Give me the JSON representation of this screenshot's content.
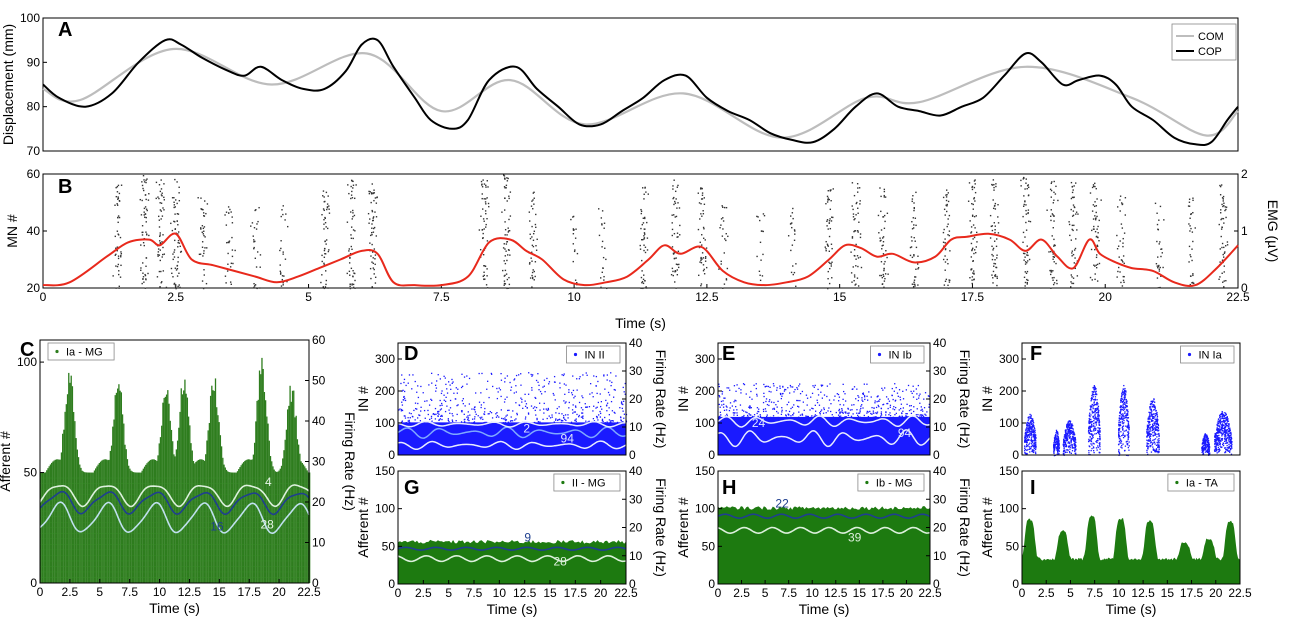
{
  "figure": {
    "time_label": "Time (s)"
  },
  "chart_data": [
    {
      "panel": "A",
      "type": "line",
      "xlabel": "",
      "ylabel": "Displacement (mm)",
      "xlim": [
        0,
        22.5
      ],
      "ylim": [
        70,
        100
      ],
      "yticks": [
        "70",
        "80",
        "90",
        "100"
      ],
      "series": [
        {
          "name": "COM",
          "color": "#bdbdbd",
          "x": [
            0,
            0.7,
            2.45,
            4.3,
            6.1,
            7.5,
            8.8,
            10.2,
            12.05,
            13.9,
            15.5,
            16.5,
            18.5,
            20.5,
            21.9,
            22.5
          ],
          "y": [
            84,
            81.5,
            93,
            85,
            92,
            79,
            86,
            76,
            83,
            73,
            82,
            81,
            89,
            82,
            73.5,
            79
          ]
        },
        {
          "name": "COP",
          "color": "#000000",
          "x": [
            0,
            0.3,
            0.8,
            1.3,
            1.8,
            2.3,
            2.6,
            3.0,
            3.5,
            3.8,
            4.1,
            4.5,
            4.9,
            5.3,
            5.7,
            6.0,
            6.3,
            6.6,
            7.0,
            7.3,
            7.7,
            8.0,
            8.4,
            8.9,
            9.3,
            9.7,
            10.1,
            10.5,
            10.9,
            11.3,
            11.7,
            12.1,
            12.5,
            12.9,
            13.3,
            13.7,
            14.1,
            14.5,
            14.9,
            15.3,
            15.7,
            16.1,
            16.5,
            16.9,
            17.3,
            17.7,
            18.1,
            18.5,
            18.8,
            19.2,
            19.5,
            19.9,
            20.2,
            20.5,
            20.9,
            21.3,
            21.7,
            22.0,
            22.3,
            22.5
          ],
          "y": [
            85,
            82,
            80,
            83,
            90,
            95,
            94,
            91,
            88,
            87,
            89,
            86,
            84,
            84,
            88,
            94,
            95,
            89,
            82,
            77,
            75,
            77,
            86,
            89,
            84,
            80,
            76,
            76,
            79,
            82,
            86,
            87,
            82,
            79,
            77,
            74,
            72.5,
            72,
            75,
            80,
            83,
            80,
            79,
            78,
            80,
            82,
            87,
            92,
            90,
            85,
            86,
            87,
            85,
            80,
            77,
            73,
            71.5,
            72,
            77,
            80
          ]
        }
      ],
      "legend": {
        "position": "top-right",
        "entries": [
          "COM",
          "COP"
        ]
      }
    },
    {
      "panel": "B",
      "type": "scatter",
      "xlabel": "Time (s)",
      "ylabel": "MN #",
      "y2label": "EMG (µV)",
      "xlim": [
        0,
        22.5
      ],
      "ylim": [
        20,
        60
      ],
      "y2lim": [
        0,
        2
      ],
      "xticks": [
        "0",
        "2.5",
        "5",
        "7.5",
        "10",
        "12.5",
        "15",
        "17.5",
        "20",
        "22.5"
      ],
      "yticks": [
        "20",
        "40",
        "60"
      ],
      "y2ticks": [
        "0",
        "1",
        "2"
      ],
      "raster": {
        "name": "MN spikes",
        "color": "#333333",
        "burst_centers": [
          1.4,
          1.9,
          2.2,
          2.5,
          3.0,
          3.5,
          4.0,
          4.5,
          5.3,
          5.8,
          6.2,
          8.3,
          8.7,
          9.2,
          10.0,
          10.5,
          11.3,
          11.9,
          12.4,
          12.8,
          13.5,
          14.1,
          14.8,
          15.3,
          15.8,
          16.4,
          17.0,
          17.5,
          17.9,
          18.5,
          19.0,
          19.4,
          19.8,
          20.3,
          21.0,
          21.6,
          22.2
        ],
        "burst_strength": [
          0.8,
          1.0,
          0.9,
          1.0,
          0.6,
          0.5,
          0.45,
          0.4,
          0.85,
          0.9,
          0.95,
          0.9,
          1.0,
          0.7,
          0.3,
          0.35,
          0.8,
          0.9,
          0.8,
          0.4,
          0.3,
          0.35,
          0.8,
          0.85,
          0.8,
          0.7,
          0.75,
          0.9,
          0.9,
          0.95,
          0.9,
          0.85,
          0.9,
          0.6,
          0.5,
          0.55,
          0.9
        ]
      },
      "series": [
        {
          "name": "EMG",
          "color": "#e8291c",
          "axis": "right",
          "x": [
            0,
            0.5,
            1.2,
            1.6,
            2.0,
            2.2,
            2.5,
            2.8,
            3.2,
            3.6,
            4.0,
            4.4,
            4.8,
            5.2,
            5.6,
            6.0,
            6.3,
            6.6,
            7.0,
            7.5,
            8.0,
            8.4,
            8.8,
            9.1,
            9.4,
            9.8,
            10.2,
            10.6,
            11.0,
            11.4,
            11.7,
            12.0,
            12.4,
            12.8,
            13.2,
            13.6,
            14.0,
            14.4,
            14.8,
            15.1,
            15.4,
            15.7,
            16.0,
            16.4,
            16.8,
            17.1,
            17.4,
            17.8,
            18.2,
            18.5,
            18.8,
            19.1,
            19.4,
            19.7,
            19.9,
            20.2,
            20.5,
            20.9,
            21.3,
            21.7,
            22.1,
            22.5
          ],
          "y": [
            0.05,
            0.1,
            0.55,
            0.8,
            0.85,
            0.75,
            0.95,
            0.5,
            0.4,
            0.3,
            0.2,
            0.1,
            0.2,
            0.35,
            0.5,
            0.65,
            0.6,
            0.1,
            0.05,
            0.05,
            0.2,
            0.8,
            0.85,
            0.65,
            0.5,
            0.15,
            0.05,
            0.1,
            0.2,
            0.5,
            0.75,
            0.6,
            0.72,
            0.3,
            0.1,
            0.05,
            0.1,
            0.2,
            0.5,
            0.75,
            0.7,
            0.55,
            0.6,
            0.45,
            0.55,
            0.85,
            0.9,
            0.95,
            0.85,
            0.65,
            0.85,
            0.55,
            0.35,
            0.85,
            0.6,
            0.45,
            0.35,
            0.3,
            0.1,
            0.05,
            0.35,
            0.75
          ]
        }
      ]
    },
    {
      "panel": "C",
      "type": "scatter",
      "xlabel": "Time (s)",
      "ylabel": "Afferent #",
      "y2label": "Firing Rate (Hz)",
      "xlim": [
        0,
        22.5
      ],
      "ylim": [
        0,
        110
      ],
      "y2lim": [
        0,
        60
      ],
      "xticks": [
        "0",
        "2.5",
        "5",
        "7.5",
        "10",
        "12.5",
        "15",
        "17.5",
        "20",
        "22.5"
      ],
      "yticks": [
        "0",
        "50",
        "100"
      ],
      "y2ticks": [
        "0",
        "10",
        "20",
        "30",
        "40",
        "50",
        "60"
      ],
      "legend": {
        "position": "top-left",
        "entries": [
          "Ia - MG"
        ]
      },
      "raster": {
        "name": "Ia - MG",
        "color": "#2e7d1e",
        "base": 50,
        "peaks_t": [
          2.4,
          6.5,
          10.5,
          12.0,
          14.5,
          18.5,
          21.0
        ],
        "peaks_h": [
          100,
          95,
          93,
          97,
          96,
          105,
          92
        ],
        "period": 4.0,
        "phase": 0.4
      },
      "series": [
        {
          "name": "4",
          "color": "#dcf0dc",
          "axis": "right",
          "x": [
            0,
            22.5
          ],
          "y": [
            22,
            22
          ],
          "amp": 2.5
        },
        {
          "name": "16",
          "color": "#1f3f8f",
          "axis": "right",
          "x": [
            0,
            22.5
          ],
          "y": [
            20,
            20
          ],
          "amp": 2.5
        },
        {
          "name": "28",
          "color": "#bfe0ee",
          "axis": "right",
          "x": [
            0,
            22.5
          ],
          "y": [
            16,
            16
          ],
          "amp": 3.5
        }
      ],
      "annotations": [
        {
          "text": "4",
          "x": 19.1,
          "y": 24,
          "axis": "right",
          "color": "#e6f6e6"
        },
        {
          "text": "16",
          "x": 14.8,
          "y": 13,
          "axis": "right",
          "color": "#1f3f8f"
        },
        {
          "text": "28",
          "x": 19.0,
          "y": 13.5,
          "axis": "right",
          "color": "#e6f6e6"
        }
      ]
    },
    {
      "panel": "D",
      "type": "scatter",
      "xlabel": "",
      "ylabel": "IN #",
      "y2label": "Firing Rate (Hz)",
      "xlim": [
        0,
        22.5
      ],
      "ylim": [
        0,
        350
      ],
      "y2lim": [
        0,
        40
      ],
      "xticks": [],
      "yticks": [
        "0",
        "100",
        "200",
        "300"
      ],
      "y2ticks": [
        "0",
        "10",
        "20",
        "30",
        "40"
      ],
      "legend": {
        "position": "top-right",
        "entries": [
          "IN II"
        ]
      },
      "raster": {
        "name": "IN II",
        "color": "#1a1aff",
        "dense_top": 120,
        "sparse_top": 260
      },
      "series": [
        {
          "name": "2",
          "color": "#7fa9ff",
          "axis": "right",
          "x": [
            0,
            22.5
          ],
          "y": [
            8,
            8
          ],
          "amp": 2
        },
        {
          "name": "94",
          "color": "#e8ecff",
          "axis": "right",
          "x": [
            0,
            22.5
          ],
          "y": [
            3.5,
            3.5
          ],
          "amp": 1.5
        },
        {
          "name": "",
          "color": "#e8ecff",
          "axis": "right",
          "x": [
            0,
            22.5
          ],
          "y": [
            11,
            11
          ],
          "amp": 1
        }
      ],
      "annotations": [
        {
          "text": "2",
          "x": 12.7,
          "y": 8,
          "axis": "right",
          "color": "#dfe6ff"
        },
        {
          "text": "94",
          "x": 16.7,
          "y": 4.5,
          "axis": "right",
          "color": "#dfe6ff"
        }
      ]
    },
    {
      "panel": "E",
      "type": "scatter",
      "xlabel": "",
      "ylabel": "IN #",
      "y2label": "Firing Rate (Hz)",
      "xlim": [
        0,
        22.5
      ],
      "ylim": [
        0,
        350
      ],
      "y2lim": [
        0,
        40
      ],
      "xticks": [],
      "yticks": [
        "0",
        "100",
        "200",
        "300"
      ],
      "y2ticks": [
        "0",
        "10",
        "20",
        "30",
        "40"
      ],
      "legend": {
        "position": "top-right",
        "entries": [
          "IN Ib"
        ]
      },
      "raster": {
        "name": "IN Ib",
        "color": "#1a1aff",
        "dense_top": 140,
        "sparse_top": 225
      },
      "series": [
        {
          "name": "24",
          "color": "#e8ecff",
          "axis": "right",
          "x": [
            0,
            22.5
          ],
          "y": [
            12,
            12
          ],
          "amp": 2
        },
        {
          "name": "94",
          "color": "#e8ecff",
          "axis": "right",
          "x": [
            0,
            22.5
          ],
          "y": [
            6,
            6
          ],
          "amp": 3
        }
      ],
      "annotations": [
        {
          "text": "24",
          "x": 4.3,
          "y": 10,
          "axis": "right",
          "color": "#dfe6ff"
        },
        {
          "text": "94",
          "x": 19.8,
          "y": 6.5,
          "axis": "right",
          "color": "#dfe6ff"
        }
      ]
    },
    {
      "panel": "F",
      "type": "scatter",
      "xlabel": "",
      "ylabel": "IN #",
      "xlim": [
        0,
        22.5
      ],
      "ylim": [
        0,
        350
      ],
      "xticks": [],
      "yticks": [
        "0",
        "100",
        "200",
        "300"
      ],
      "legend": {
        "position": "top-right",
        "entries": [
          "IN Ia"
        ]
      },
      "raster": {
        "name": "IN Ia",
        "color": "#1a1aff",
        "bursts": [
          [
            0.2,
            1.4,
            130
          ],
          [
            3.2,
            3.8,
            80
          ],
          [
            4.2,
            5.5,
            110
          ],
          [
            6.8,
            8.0,
            220
          ],
          [
            9.9,
            11.0,
            220
          ],
          [
            12.8,
            14.1,
            180
          ],
          [
            18.5,
            19.3,
            70
          ],
          [
            19.8,
            21.6,
            140
          ]
        ]
      }
    },
    {
      "panel": "G",
      "type": "scatter",
      "xlabel": "Time (s)",
      "ylabel": "Afferent #",
      "y2label": "Firing Rate (Hz)",
      "xlim": [
        0,
        22.5
      ],
      "ylim": [
        0,
        150
      ],
      "y2lim": [
        0,
        40
      ],
      "xticks": [
        "0",
        "2.5",
        "5",
        "7.5",
        "10",
        "12.5",
        "15",
        "17.5",
        "20",
        "22.5"
      ],
      "yticks": [
        "0",
        "50",
        "100",
        "150"
      ],
      "y2ticks": [
        "0",
        "10",
        "20",
        "30",
        "40"
      ],
      "legend": {
        "position": "top-right",
        "entries": [
          "II - MG"
        ]
      },
      "raster": {
        "name": "II - MG",
        "color": "#1d7a10",
        "top": 55
      },
      "series": [
        {
          "name": "9",
          "color": "#1f3f8f",
          "axis": "right",
          "x": [
            0,
            22.5
          ],
          "y": [
            12.5,
            12.5
          ],
          "amp": 0.5
        },
        {
          "name": "28",
          "color": "#dcf0dc",
          "axis": "right",
          "x": [
            0,
            22.5
          ],
          "y": [
            9,
            9
          ],
          "amp": 1
        }
      ],
      "annotations": [
        {
          "text": "9",
          "x": 12.8,
          "y": 15,
          "axis": "right",
          "color": "#1f3f8f"
        },
        {
          "text": "28",
          "x": 16.0,
          "y": 6.5,
          "axis": "right",
          "color": "#dcf0dc"
        }
      ]
    },
    {
      "panel": "H",
      "type": "scatter",
      "xlabel": "Time (s)",
      "ylabel": "Afferent #",
      "y2label": "Firing Rate (Hz)",
      "xlim": [
        0,
        22.5
      ],
      "ylim": [
        0,
        150
      ],
      "y2lim": [
        0,
        40
      ],
      "xticks": [
        "0",
        "2.5",
        "5",
        "7.5",
        "10",
        "12.5",
        "15",
        "17.5",
        "20",
        "22.5"
      ],
      "yticks": [
        "0",
        "50",
        "100",
        "150"
      ],
      "y2ticks": [
        "0",
        "10",
        "20",
        "30",
        "40"
      ],
      "legend": {
        "position": "top-right",
        "entries": [
          "Ib - MG"
        ]
      },
      "raster": {
        "name": "Ib - MG",
        "color": "#1d7a10",
        "top": 100
      },
      "series": [
        {
          "name": "22",
          "color": "#1f3f8f",
          "axis": "right",
          "x": [
            0,
            22.5
          ],
          "y": [
            24,
            24
          ],
          "amp": 0.7
        },
        {
          "name": "39",
          "color": "#dcf0dc",
          "axis": "right",
          "x": [
            0,
            22.5
          ],
          "y": [
            19,
            19
          ],
          "amp": 1
        }
      ],
      "annotations": [
        {
          "text": "22",
          "x": 6.8,
          "y": 27,
          "axis": "right",
          "color": "#1f3f8f"
        },
        {
          "text": "39",
          "x": 14.5,
          "y": 15,
          "axis": "right",
          "color": "#dcf0dc"
        }
      ]
    },
    {
      "panel": "I",
      "type": "scatter",
      "xlabel": "Time (s)",
      "ylabel": "Afferent #",
      "xlim": [
        0,
        22.5
      ],
      "ylim": [
        0,
        150
      ],
      "xticks": [
        "0",
        "2.5",
        "5",
        "7.5",
        "10",
        "12.5",
        "15",
        "17.5",
        "20",
        "22.5"
      ],
      "yticks": [
        "0",
        "50",
        "100",
        "150"
      ],
      "legend": {
        "position": "top-right",
        "entries": [
          "Ia - TA"
        ]
      },
      "raster": {
        "name": "Ia - TA",
        "color": "#1d7a10",
        "base": 33,
        "peaks_t": [
          0.8,
          4.2,
          7.2,
          10.2,
          13.2,
          16.8,
          19.3,
          21.5
        ],
        "peaks_h": [
          85,
          70,
          90,
          87,
          83,
          55,
          60,
          83
        ]
      }
    }
  ]
}
